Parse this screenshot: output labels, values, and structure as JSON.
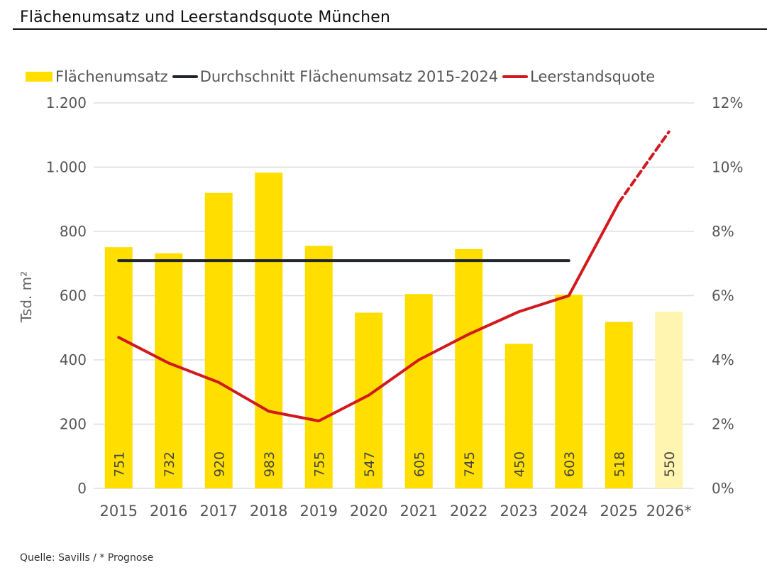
{
  "title": "Flächenumsatz und Leerstandsquote München",
  "source": "Quelle: Savills / * Prognose",
  "colors": {
    "bar": "#FFDE00",
    "bar_forecast": "#FFF4B0",
    "average_line": "#23262F",
    "vacancy_line": "#D2191E",
    "grid": "#DDDDDD",
    "text": "#555555"
  },
  "legend": [
    {
      "label": "Flächenumsatz",
      "kind": "bar",
      "color": "#FFDE00"
    },
    {
      "label": "Durchschnitt Flächenumsatz 2015-2024",
      "kind": "line",
      "color": "#23262F"
    },
    {
      "label": "Leerstandsquote",
      "kind": "line",
      "color": "#D2191E"
    }
  ],
  "chart_data": {
    "type": "bar",
    "title": "Flächenumsatz und Leerstandsquote München",
    "categories": [
      "2015",
      "2016",
      "2017",
      "2018",
      "2019",
      "2020",
      "2021",
      "2022",
      "2023",
      "2024",
      "2025",
      "2026*"
    ],
    "forecast_categories": [
      "2026*"
    ],
    "series": [
      {
        "name": "Flächenumsatz",
        "type": "bar",
        "axis": "left",
        "values": [
          751,
          732,
          920,
          983,
          755,
          547,
          605,
          745,
          450,
          603,
          518,
          550
        ],
        "data_labels": [
          "751",
          "732",
          "920",
          "983",
          "755",
          "547",
          "605",
          "745",
          "450",
          "603",
          "518",
          "550"
        ]
      },
      {
        "name": "Durchschnitt Flächenumsatz 2015-2024",
        "type": "line",
        "axis": "left",
        "values": [
          709,
          709,
          709,
          709,
          709,
          709,
          709,
          709,
          709,
          709,
          null,
          null
        ]
      },
      {
        "name": "Leerstandsquote",
        "type": "line",
        "axis": "right",
        "unit": "%",
        "values": [
          4.7,
          3.9,
          3.3,
          2.4,
          2.1,
          2.9,
          4.0,
          4.8,
          5.5,
          6.0,
          8.9,
          11.1
        ],
        "dashed_from_index": 10
      }
    ],
    "xlabel": "",
    "ylabel": "Tsd. m²",
    "ylabel_right": "",
    "ylim": [
      0,
      1200
    ],
    "ylim_right": [
      0,
      12
    ],
    "yticks": [
      0,
      200,
      400,
      600,
      800,
      1000,
      1200
    ],
    "ytick_labels": [
      "0",
      "200",
      "400",
      "600",
      "800",
      "1.000",
      "1.200"
    ],
    "yticks_right": [
      0,
      2,
      4,
      6,
      8,
      10,
      12
    ],
    "ytick_labels_right": [
      "0%",
      "2%",
      "4%",
      "6%",
      "8%",
      "10%",
      "12%"
    ],
    "grid": true,
    "legend_position": "top"
  }
}
